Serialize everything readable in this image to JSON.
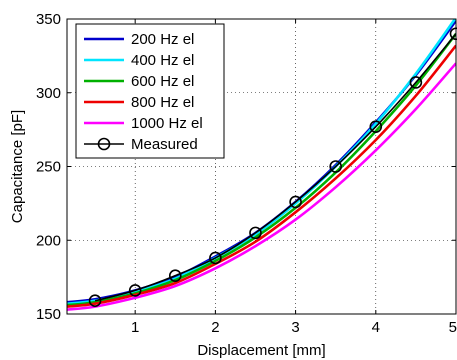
{
  "chart_data": {
    "type": "line",
    "xlabel": "Displacement [mm]",
    "ylabel": "Capacitance [pF]",
    "xlim": [
      0.15,
      5.0
    ],
    "ylim": [
      150,
      350
    ],
    "x_ticks": [
      1,
      2,
      3,
      4,
      5
    ],
    "y_ticks": [
      150,
      200,
      250,
      300,
      350
    ],
    "grid": true,
    "legend_position": "top-left",
    "x": [
      0.15,
      0.5,
      1.0,
      1.5,
      2.0,
      2.5,
      3.0,
      3.5,
      4.0,
      4.5,
      5.0
    ],
    "series": [
      {
        "name": "200 Hz el",
        "color": "#0000cc",
        "values": [
          158,
          160,
          166,
          175,
          189,
          205,
          226,
          251,
          280,
          312,
          349
        ]
      },
      {
        "name": "400 Hz el",
        "color": "#00e5ff",
        "values": [
          157,
          159,
          165,
          174,
          188,
          204,
          225,
          250,
          279,
          313,
          351
        ]
      },
      {
        "name": "600 Hz el",
        "color": "#00b000",
        "values": [
          156,
          158,
          164,
          173,
          186,
          202,
          222,
          246,
          274,
          305,
          340
        ]
      },
      {
        "name": "800 Hz el",
        "color": "#ee0000",
        "values": [
          155,
          157,
          163,
          171,
          184,
          199,
          219,
          242,
          268,
          298,
          332
        ]
      },
      {
        "name": "1000 Hz el",
        "color": "#ff00ff",
        "values": [
          153,
          155,
          161,
          169,
          181,
          196,
          214,
          236,
          261,
          289,
          320
        ]
      },
      {
        "name": "Measured",
        "color": "#000000",
        "marker": "circle",
        "points": [
          [
            0.5,
            159
          ],
          [
            1.0,
            166
          ],
          [
            1.5,
            176
          ],
          [
            2.0,
            188
          ],
          [
            2.5,
            205
          ],
          [
            3.0,
            226
          ],
          [
            3.5,
            250
          ],
          [
            4.0,
            277
          ],
          [
            4.5,
            307
          ],
          [
            5.0,
            340
          ]
        ]
      }
    ]
  }
}
